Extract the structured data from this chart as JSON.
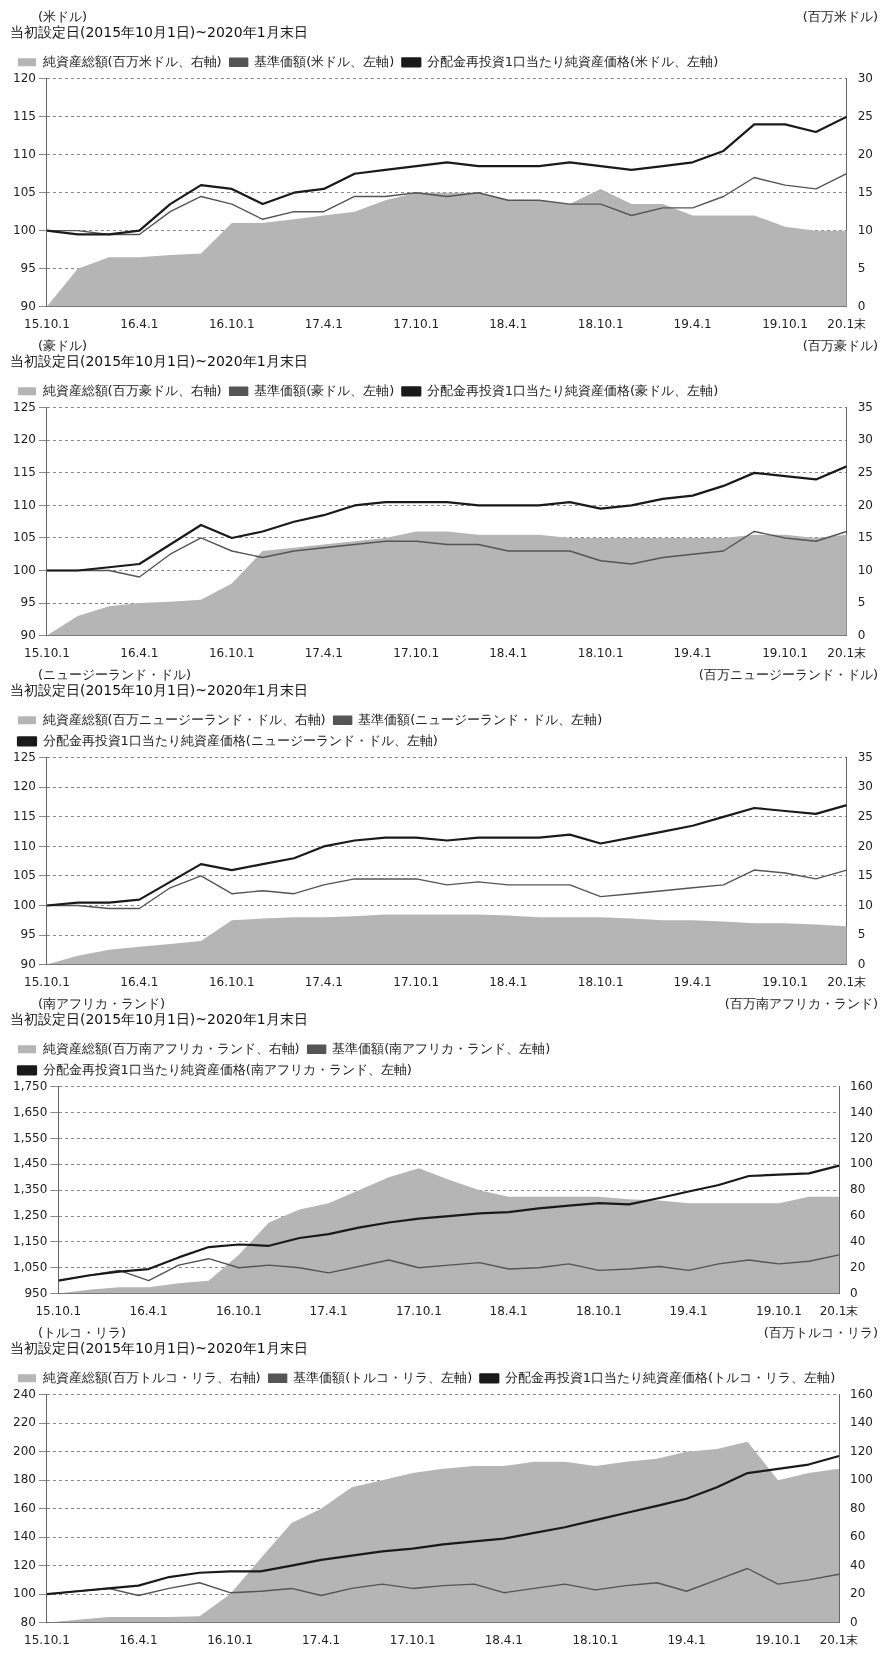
{
  "chart_data": [
    {
      "type": "line",
      "title": "当初設定日(2015年10月1日)~2020年1月末日",
      "ylabel": "(米ドル)",
      "y2label": "(百万米ドル)",
      "marker": "none",
      "grid": "y",
      "legend": "top left",
      "x": [
        "2015-10-01",
        "2015-12-01",
        "2016-02-01",
        "2016-04-01",
        "2016-06-01",
        "2016-08-01",
        "2016-10-01",
        "2016-12-01",
        "2017-02-01",
        "2017-04-01",
        "2017-06-01",
        "2017-08-01",
        "2017-10-01",
        "2017-12-01",
        "2018-02-01",
        "2018-04-01",
        "2018-06-01",
        "2018-08-01",
        "2018-10-01",
        "2018-12-01",
        "2019-02-01",
        "2019-04-01",
        "2019-06-01",
        "2019-08-01",
        "2019-10-01",
        "2019-12-01",
        "2020-01-31"
      ],
      "xlim": [
        "2015-10-01",
        "2020-01-31"
      ],
      "xticks": [
        {
          "value": "2015-10-01",
          "label": "15.10.1"
        },
        {
          "value": "2016-04-01",
          "label": "16.4.1"
        },
        {
          "value": "2016-10-01",
          "label": "16.10.1"
        },
        {
          "value": "2017-04-01",
          "label": "17.4.1"
        },
        {
          "value": "2017-10-01",
          "label": "17.10.1"
        },
        {
          "value": "2018-04-01",
          "label": "18.4.1"
        },
        {
          "value": "2018-10-01",
          "label": "18.10.1"
        },
        {
          "value": "2019-04-01",
          "label": "19.4.1"
        },
        {
          "value": "2019-10-01",
          "label": "19.10.1"
        },
        {
          "value": "2020-01-31",
          "label": "20.1末"
        }
      ],
      "ylim": [
        90,
        120
      ],
      "yticks": [
        90,
        95,
        100,
        105,
        110,
        115,
        120
      ],
      "y2lim": [
        0,
        30
      ],
      "y2ticks": [
        0,
        5,
        10,
        15,
        20,
        25,
        30
      ],
      "series": [
        {
          "name": "純資産総額(百万米ドル、右軸)",
          "type": "area",
          "axis": "y2",
          "color": "#b5b5b5",
          "values": [
            0,
            5,
            6.5,
            6.5,
            6.8,
            7,
            11,
            11,
            11.5,
            12,
            12.5,
            14,
            15,
            15,
            15,
            14,
            14,
            13.5,
            15.5,
            13.5,
            13.5,
            12,
            12,
            12,
            10.5,
            10,
            10
          ]
        },
        {
          "name": "基準価額(米ドル、左軸)",
          "color": "#555555",
          "values": [
            100,
            100,
            99.5,
            99.5,
            102.5,
            104.5,
            103.5,
            101.5,
            102.5,
            102.5,
            104.5,
            104.5,
            105,
            104.5,
            105,
            104,
            104,
            103.5,
            103.5,
            102,
            103,
            103,
            104.5,
            107,
            106,
            105.5,
            107.5
          ]
        },
        {
          "name": "分配金再投資1口当たり純資産価格(米ドル、左軸)",
          "color": "#1a1a1a",
          "values": [
            100,
            99.5,
            99.5,
            100,
            103.5,
            106,
            105.5,
            103.5,
            105,
            105.5,
            107.5,
            108,
            108.5,
            109,
            108.5,
            108.5,
            108.5,
            109,
            108.5,
            108,
            108.5,
            109,
            110.5,
            114,
            114,
            113,
            115
          ]
        }
      ]
    },
    {
      "type": "line",
      "title": "当初設定日(2015年10月1日)~2020年1月末日",
      "ylabel": "(豪ドル)",
      "y2label": "(百万豪ドル)",
      "marker": "none",
      "grid": "y",
      "legend": "top left",
      "x": [
        "2015-10-01",
        "2015-12-01",
        "2016-02-01",
        "2016-04-01",
        "2016-06-01",
        "2016-08-01",
        "2016-10-01",
        "2016-12-01",
        "2017-02-01",
        "2017-04-01",
        "2017-06-01",
        "2017-08-01",
        "2017-10-01",
        "2017-12-01",
        "2018-02-01",
        "2018-04-01",
        "2018-06-01",
        "2018-08-01",
        "2018-10-01",
        "2018-12-01",
        "2019-02-01",
        "2019-04-01",
        "2019-06-01",
        "2019-08-01",
        "2019-10-01",
        "2019-12-01",
        "2020-01-31"
      ],
      "xlim": [
        "2015-10-01",
        "2020-01-31"
      ],
      "xticks": [
        {
          "value": "2015-10-01",
          "label": "15.10.1"
        },
        {
          "value": "2016-04-01",
          "label": "16.4.1"
        },
        {
          "value": "2016-10-01",
          "label": "16.10.1"
        },
        {
          "value": "2017-04-01",
          "label": "17.4.1"
        },
        {
          "value": "2017-10-01",
          "label": "17.10.1"
        },
        {
          "value": "2018-04-01",
          "label": "18.4.1"
        },
        {
          "value": "2018-10-01",
          "label": "18.10.1"
        },
        {
          "value": "2019-04-01",
          "label": "19.4.1"
        },
        {
          "value": "2019-10-01",
          "label": "19.10.1"
        },
        {
          "value": "2020-01-31",
          "label": "20.1末"
        }
      ],
      "ylim": [
        90,
        125
      ],
      "yticks": [
        90,
        95,
        100,
        105,
        110,
        115,
        120,
        125
      ],
      "y2lim": [
        0,
        35
      ],
      "y2ticks": [
        0,
        5,
        10,
        15,
        20,
        25,
        30,
        35
      ],
      "series": [
        {
          "name": "純資産総額(百万豪ドル、右軸)",
          "type": "area",
          "axis": "y2",
          "color": "#b5b5b5",
          "values": [
            0,
            3,
            4.5,
            5,
            5.2,
            5.5,
            8,
            13,
            13.5,
            14,
            14.5,
            15,
            16,
            16,
            15.5,
            15.5,
            15.5,
            15,
            15,
            15,
            15,
            15,
            15,
            15.5,
            15.5,
            15,
            15.5
          ]
        },
        {
          "name": "基準価額(豪ドル、左軸)",
          "color": "#555555",
          "values": [
            100,
            100,
            100,
            99,
            102.5,
            105,
            103,
            102,
            103,
            103.5,
            104,
            104.5,
            104.5,
            104,
            104,
            103,
            103,
            103,
            101.5,
            101,
            102,
            102.5,
            103,
            106,
            105,
            104.5,
            106
          ]
        },
        {
          "name": "分配金再投資1口当たり純資産価格(豪ドル、左軸)",
          "color": "#1a1a1a",
          "values": [
            100,
            100,
            100.5,
            101,
            104,
            107,
            105,
            106,
            107.5,
            108.5,
            110,
            110.5,
            110.5,
            110.5,
            110,
            110,
            110,
            110.5,
            109.5,
            110,
            111,
            111.5,
            113,
            115,
            114.5,
            114,
            116
          ]
        }
      ]
    },
    {
      "type": "line",
      "title": "当初設定日(2015年10月1日)~2020年1月末日",
      "ylabel": "(ニュージーランド・ドル)",
      "y2label": "(百万ニュージーランド・ドル)",
      "marker": "none",
      "grid": "y",
      "legend": "top left",
      "x": [
        "2015-10-01",
        "2015-12-01",
        "2016-02-01",
        "2016-04-01",
        "2016-06-01",
        "2016-08-01",
        "2016-10-01",
        "2016-12-01",
        "2017-02-01",
        "2017-04-01",
        "2017-06-01",
        "2017-08-01",
        "2017-10-01",
        "2017-12-01",
        "2018-02-01",
        "2018-04-01",
        "2018-06-01",
        "2018-08-01",
        "2018-10-01",
        "2018-12-01",
        "2019-02-01",
        "2019-04-01",
        "2019-06-01",
        "2019-08-01",
        "2019-10-01",
        "2019-12-01",
        "2020-01-31"
      ],
      "xlim": [
        "2015-10-01",
        "2020-01-31"
      ],
      "xticks": [
        {
          "value": "2015-10-01",
          "label": "15.10.1"
        },
        {
          "value": "2016-04-01",
          "label": "16.4.1"
        },
        {
          "value": "2016-10-01",
          "label": "16.10.1"
        },
        {
          "value": "2017-04-01",
          "label": "17.4.1"
        },
        {
          "value": "2017-10-01",
          "label": "17.10.1"
        },
        {
          "value": "2018-04-01",
          "label": "18.4.1"
        },
        {
          "value": "2018-10-01",
          "label": "18.10.1"
        },
        {
          "value": "2019-04-01",
          "label": "19.4.1"
        },
        {
          "value": "2019-10-01",
          "label": "19.10.1"
        },
        {
          "value": "2020-01-31",
          "label": "20.1末"
        }
      ],
      "ylim": [
        90,
        125
      ],
      "yticks": [
        90,
        95,
        100,
        105,
        110,
        115,
        120,
        125
      ],
      "y2lim": [
        0,
        35
      ],
      "y2ticks": [
        0,
        5,
        10,
        15,
        20,
        25,
        30,
        35
      ],
      "series": [
        {
          "name": "純資産総額(百万ニュージーランド・ドル、右軸)",
          "type": "area",
          "axis": "y2",
          "color": "#b5b5b5",
          "values": [
            0,
            1.5,
            2.5,
            3,
            3.5,
            4,
            7.5,
            7.8,
            8,
            8,
            8.2,
            8.5,
            8.5,
            8.5,
            8.5,
            8.3,
            8,
            8,
            8,
            7.8,
            7.5,
            7.5,
            7.3,
            7,
            7,
            6.8,
            6.5
          ]
        },
        {
          "name": "基準価額(ニュージーランド・ドル、左軸)",
          "color": "#555555",
          "values": [
            100,
            100,
            99.5,
            99.5,
            103,
            105,
            102,
            102.5,
            102,
            103.5,
            104.5,
            104.5,
            104.5,
            103.5,
            104,
            103.5,
            103.5,
            103.5,
            101.5,
            102,
            102.5,
            103,
            103.5,
            106,
            105.5,
            104.5,
            106
          ]
        },
        {
          "name": "分配金再投資1口当たり純資産価格(ニュージーランド・ドル、左軸)",
          "color": "#1a1a1a",
          "values": [
            100,
            100.5,
            100.5,
            101,
            104,
            107,
            106,
            107,
            108,
            110,
            111,
            111.5,
            111.5,
            111,
            111.5,
            111.5,
            111.5,
            112,
            110.5,
            111.5,
            112.5,
            113.5,
            115,
            116.5,
            116,
            115.5,
            117
          ]
        }
      ]
    },
    {
      "type": "line",
      "title": "当初設定日(2015年10月1日)~2020年1月末日",
      "ylabel": "(南アフリカ・ランド)",
      "y2label": "(百万南アフリカ・ランド)",
      "marker": "none",
      "grid": "y",
      "legend": "top left",
      "x": [
        "2015-10-01",
        "2015-12-01",
        "2016-02-01",
        "2016-04-01",
        "2016-06-01",
        "2016-08-01",
        "2016-10-01",
        "2016-12-01",
        "2017-02-01",
        "2017-04-01",
        "2017-06-01",
        "2017-08-01",
        "2017-10-01",
        "2017-12-01",
        "2018-02-01",
        "2018-04-01",
        "2018-06-01",
        "2018-08-01",
        "2018-10-01",
        "2018-12-01",
        "2019-02-01",
        "2019-04-01",
        "2019-06-01",
        "2019-08-01",
        "2019-10-01",
        "2019-12-01",
        "2020-01-31"
      ],
      "xlim": [
        "2015-10-01",
        "2020-01-31"
      ],
      "xticks": [
        {
          "value": "2015-10-01",
          "label": "15.10.1"
        },
        {
          "value": "2016-04-01",
          "label": "16.4.1"
        },
        {
          "value": "2016-10-01",
          "label": "16.10.1"
        },
        {
          "value": "2017-04-01",
          "label": "17.4.1"
        },
        {
          "value": "2017-10-01",
          "label": "17.10.1"
        },
        {
          "value": "2018-04-01",
          "label": "18.4.1"
        },
        {
          "value": "2018-10-01",
          "label": "18.10.1"
        },
        {
          "value": "2019-04-01",
          "label": "19.4.1"
        },
        {
          "value": "2019-10-01",
          "label": "19.10.1"
        },
        {
          "value": "2020-01-31",
          "label": "20.1末"
        }
      ],
      "ylim": [
        950,
        1750
      ],
      "yticks": [
        950,
        {
          "value": 1050,
          "label": "1,050"
        },
        {
          "value": 1150,
          "label": "1,150"
        },
        {
          "value": 1250,
          "label": "1,250"
        },
        {
          "value": 1350,
          "label": "1,350"
        },
        {
          "value": 1450,
          "label": "1,450"
        },
        {
          "value": 1550,
          "label": "1,550"
        },
        {
          "value": 1650,
          "label": "1,650"
        },
        {
          "value": 1750,
          "label": "1,750"
        }
      ],
      "y2lim": [
        0,
        160
      ],
      "y2ticks": [
        0,
        20,
        40,
        60,
        80,
        100,
        120,
        140,
        160
      ],
      "series": [
        {
          "name": "純資産総額(百万南アフリカ・ランド、右軸)",
          "type": "area",
          "axis": "y2",
          "color": "#b5b5b5",
          "values": [
            0,
            3,
            5,
            5,
            8,
            10,
            30,
            55,
            65,
            70,
            80,
            90,
            97,
            88,
            80,
            75,
            75,
            75,
            75,
            73,
            72,
            70,
            70,
            70,
            70,
            75,
            75
          ]
        },
        {
          "name": "基準価額(南アフリカ・ランド、左軸)",
          "color": "#555555",
          "values": [
            1000,
            1020,
            1040,
            1000,
            1060,
            1085,
            1050,
            1060,
            1050,
            1030,
            1055,
            1080,
            1050,
            1060,
            1070,
            1045,
            1050,
            1065,
            1040,
            1045,
            1055,
            1040,
            1065,
            1080,
            1065,
            1075,
            1100
          ]
        },
        {
          "name": "分配金再投資1口当たり純資産価格(南アフリカ・ランド、左軸)",
          "color": "#1a1a1a",
          "values": [
            1000,
            1020,
            1035,
            1045,
            1090,
            1130,
            1140,
            1135,
            1165,
            1180,
            1205,
            1225,
            1240,
            1250,
            1260,
            1265,
            1280,
            1290,
            1300,
            1295,
            1320,
            1345,
            1370,
            1405,
            1410,
            1415,
            1445
          ]
        }
      ]
    },
    {
      "type": "line",
      "title": "当初設定日(2015年10月1日)~2020年1月末日",
      "ylabel": "(トルコ・リラ)",
      "y2label": "(百万トルコ・リラ)",
      "marker": "none",
      "grid": "y",
      "legend": "top left",
      "x": [
        "2015-10-01",
        "2015-12-01",
        "2016-02-01",
        "2016-04-01",
        "2016-06-01",
        "2016-08-01",
        "2016-10-01",
        "2016-12-01",
        "2017-02-01",
        "2017-04-01",
        "2017-06-01",
        "2017-08-01",
        "2017-10-01",
        "2017-12-01",
        "2018-02-01",
        "2018-04-01",
        "2018-06-01",
        "2018-08-01",
        "2018-10-01",
        "2018-12-01",
        "2019-02-01",
        "2019-04-01",
        "2019-06-01",
        "2019-08-01",
        "2019-10-01",
        "2019-12-01",
        "2020-01-31"
      ],
      "xlim": [
        "2015-10-01",
        "2020-01-31"
      ],
      "xticks": [
        {
          "value": "2015-10-01",
          "label": "15.10.1"
        },
        {
          "value": "2016-04-01",
          "label": "16.4.1"
        },
        {
          "value": "2016-10-01",
          "label": "16.10.1"
        },
        {
          "value": "2017-04-01",
          "label": "17.4.1"
        },
        {
          "value": "2017-10-01",
          "label": "17.10.1"
        },
        {
          "value": "2018-04-01",
          "label": "18.4.1"
        },
        {
          "value": "2018-10-01",
          "label": "18.10.1"
        },
        {
          "value": "2019-04-01",
          "label": "19.4.1"
        },
        {
          "value": "2019-10-01",
          "label": "19.10.1"
        },
        {
          "value": "2020-01-31",
          "label": "20.1末"
        }
      ],
      "ylim": [
        80,
        240
      ],
      "yticks": [
        80,
        100,
        120,
        140,
        160,
        180,
        200,
        220,
        240
      ],
      "y2lim": [
        0,
        160
      ],
      "y2ticks": [
        0,
        20,
        40,
        60,
        80,
        100,
        120,
        140,
        160
      ],
      "series": [
        {
          "name": "純資産総額(百万トルコ・リラ、右軸)",
          "type": "area",
          "axis": "y2",
          "color": "#b5b5b5",
          "values": [
            0,
            2,
            4,
            4,
            4,
            4.5,
            20,
            45,
            70,
            80,
            95,
            100,
            105,
            108,
            110,
            110,
            113,
            113,
            110,
            113,
            115,
            120,
            122,
            127,
            100,
            105,
            108
          ]
        },
        {
          "name": "基準価額(トルコ・リラ、左軸)",
          "color": "#555555",
          "values": [
            100,
            102,
            104,
            99,
            104,
            108,
            101,
            102,
            104,
            99,
            104,
            107,
            104,
            106,
            107,
            101,
            104,
            107,
            103,
            106,
            108,
            102,
            110,
            118,
            107,
            110,
            114
          ]
        },
        {
          "name": "分配金再投資1口当たり純資産価格(トルコ・リラ、左軸)",
          "color": "#1a1a1a",
          "values": [
            100,
            102,
            104,
            106,
            112,
            115,
            116,
            116,
            120,
            124,
            127,
            130,
            132,
            135,
            137,
            139,
            143,
            147,
            152,
            157,
            162,
            167,
            175,
            185,
            188,
            191,
            197
          ]
        }
      ]
    }
  ]
}
